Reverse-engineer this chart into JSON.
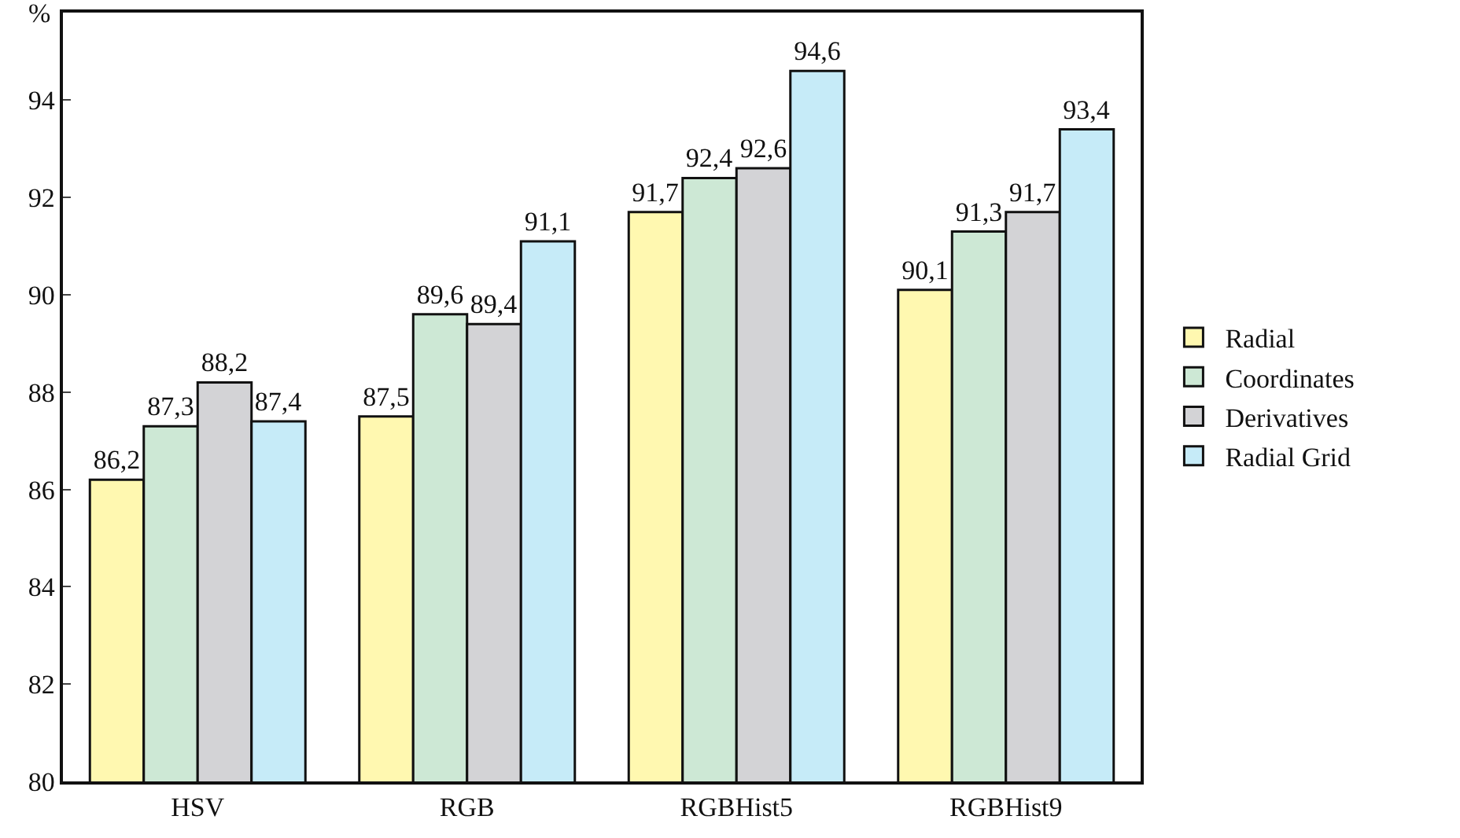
{
  "chart_data": {
    "type": "bar",
    "ylabel": "%",
    "categories": [
      "HSV",
      "RGB",
      "RGBHist5",
      "RGBHist9"
    ],
    "series": [
      {
        "name": "Radial",
        "color": "#fff8b0",
        "values": [
          86.2,
          87.5,
          91.7,
          90.1
        ],
        "value_labels": [
          "86,2",
          "87,5",
          "91,7",
          "90,1"
        ]
      },
      {
        "name": "Coordinates",
        "color": "#cde8d5",
        "values": [
          87.3,
          89.6,
          92.4,
          91.3
        ],
        "value_labels": [
          "87,3",
          "89,6",
          "92,4",
          "91,3"
        ]
      },
      {
        "name": "Derivatives",
        "color": "#d3d3d6",
        "values": [
          88.2,
          89.4,
          92.6,
          91.7
        ],
        "value_labels": [
          "88,2",
          "89,4",
          "92,6",
          "91,7"
        ]
      },
      {
        "name": "Radial Grid",
        "color": "#c6ebf8",
        "values": [
          87.4,
          91.1,
          94.6,
          93.4
        ],
        "value_labels": [
          "87,4",
          "91,1",
          "94,6",
          "93,4"
        ]
      }
    ],
    "ylim": [
      80,
      95.8
    ],
    "yticks": [
      80,
      82,
      84,
      86,
      88,
      90,
      92,
      94
    ],
    "grid": false,
    "legend": "right"
  }
}
